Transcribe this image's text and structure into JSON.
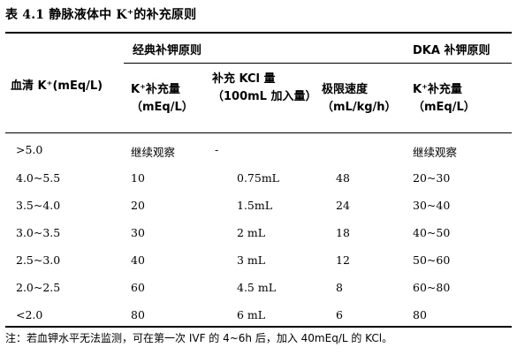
{
  "title": "表 4.1 静脉液体中 K⁺的补充原则",
  "headers": {
    "classic_group": "经典补钾原则",
    "dka_group": "DKA 补钾原则",
    "serum_k": "血清 K⁺(mEq/L)",
    "k_supplement": "K⁺补充量（mEq/L）",
    "kcl_amount": "补充 KCl 量（100mL 加入量）",
    "limit_rate": "极限速度（mL/kg/h）",
    "dka_k_supplement": "K⁺补充量（mEq/L）"
  },
  "rows": [
    {
      "serum_k": ">5.0",
      "k_supplement": "继续观察",
      "kcl_amount": "-",
      "limit_rate": "",
      "dka": "继续观察"
    },
    {
      "serum_k": "4.0~5.5",
      "k_supplement": "10",
      "kcl_amount": "0.75mL",
      "limit_rate": "48",
      "dka": "20~30"
    },
    {
      "serum_k": "3.5~4.0",
      "k_supplement": "20",
      "kcl_amount": "1.5mL",
      "limit_rate": "24",
      "dka": "30~40"
    },
    {
      "serum_k": "3.0~3.5",
      "k_supplement": "30",
      "kcl_amount": "2 mL",
      "limit_rate": "18",
      "dka": "40~50"
    },
    {
      "serum_k": "2.5~3.0",
      "k_supplement": "40",
      "kcl_amount": "3 mL",
      "limit_rate": "12",
      "dka": "50~60"
    },
    {
      "serum_k": "2.0~2.5",
      "k_supplement": "60",
      "kcl_amount": "4.5 mL",
      "limit_rate": "8",
      "dka": "60~80"
    },
    {
      "serum_k": "<2.0",
      "k_supplement": "80",
      "kcl_amount": "6 mL",
      "limit_rate": "6",
      "dka": "80"
    }
  ],
  "note": "注：若血钾水平无法监测，可在第一次 IVF 的 4~6h 后，加入 40mEq/L 的 KCl。"
}
